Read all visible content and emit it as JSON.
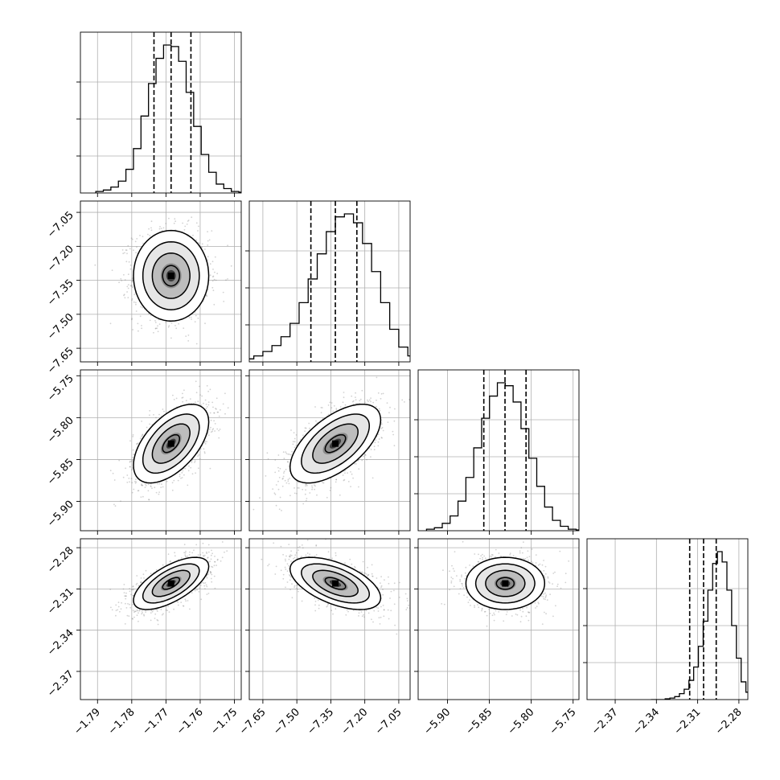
{
  "chart_data": {
    "type": "corner",
    "title": "",
    "n_params": 4,
    "params": [
      {
        "name": "",
        "mean": -1.7685,
        "std": 0.0055,
        "range": [
          -1.795,
          -1.748
        ],
        "ticks": [
          -1.79,
          -1.78,
          -1.77,
          -1.76,
          -1.75
        ],
        "tick_labels": [
          "−1.79",
          "−1.78",
          "−1.77",
          "−1.76",
          "−1.75"
        ],
        "quantiles": [
          -1.7735,
          -1.7685,
          -1.7627
        ]
      },
      {
        "name": "",
        "mean": -7.33,
        "std": 0.1,
        "range": [
          -7.71,
          -7.0
        ],
        "ticks": [
          -7.65,
          -7.5,
          -7.35,
          -7.2,
          -7.05
        ],
        "tick_labels": [
          "−7.65",
          "−7.50",
          "−7.35",
          "−7.20",
          "−7.05"
        ],
        "quantiles": [
          -7.438,
          -7.33,
          -7.235
        ]
      },
      {
        "name": "",
        "mean": -5.831,
        "std": 0.0235,
        "range": [
          -5.935,
          -5.743
        ],
        "ticks": [
          -5.9,
          -5.85,
          -5.8,
          -5.75
        ],
        "tick_labels": [
          "−5.90",
          "−5.85",
          "−5.80",
          "−5.75"
        ],
        "quantiles": [
          -5.8566,
          -5.8313,
          -5.8062
        ]
      },
      {
        "name": "",
        "mean": -2.306,
        "std": 0.0095,
        "range": [
          -2.3905,
          -2.2735
        ],
        "ticks": [
          -2.37,
          -2.34,
          -2.31,
          -2.28
        ],
        "tick_labels": [
          "−2.37",
          "−2.34",
          "−2.31",
          "−2.28"
        ],
        "quantiles": [
          -2.3158,
          -2.3057,
          -2.2965
        ]
      }
    ],
    "correlations": [
      [
        1.0,
        0.0,
        0.55,
        0.65
      ],
      [
        0.0,
        1.0,
        0.6,
        -0.55
      ],
      [
        0.55,
        0.6,
        1.0,
        0.0
      ],
      [
        0.65,
        -0.55,
        0.0,
        1.0
      ]
    ],
    "histograms": [
      [
        0.01,
        0.02,
        0.04,
        0.08,
        0.16,
        0.3,
        0.52,
        0.74,
        0.91,
        1.0,
        0.99,
        0.89,
        0.68,
        0.45,
        0.26,
        0.14,
        0.06,
        0.03,
        0.01,
        0.005
      ],
      [
        0.02,
        0.04,
        0.07,
        0.11,
        0.17,
        0.26,
        0.4,
        0.56,
        0.73,
        0.88,
        0.98,
        1.0,
        0.94,
        0.8,
        0.61,
        0.4,
        0.22,
        0.1,
        0.04,
        0.01
      ],
      [
        0.01,
        0.02,
        0.05,
        0.1,
        0.2,
        0.36,
        0.56,
        0.76,
        0.91,
        1.0,
        0.98,
        0.87,
        0.69,
        0.49,
        0.3,
        0.16,
        0.07,
        0.03,
        0.01,
        0.005
      ],
      [
        0.0,
        0.0,
        0.0,
        0.005,
        0.01,
        0.02,
        0.04,
        0.07,
        0.13,
        0.22,
        0.36,
        0.53,
        0.74,
        0.92,
        1.0,
        0.93,
        0.74,
        0.5,
        0.28,
        0.12,
        0.05,
        0.02
      ]
    ],
    "contour_levels": [
      0.3,
      0.6,
      0.9
    ],
    "grid": true,
    "colors": {
      "line": "#000000",
      "grid": "#b0b0b0",
      "points": "#7f7f7f",
      "density": "#000000"
    }
  }
}
